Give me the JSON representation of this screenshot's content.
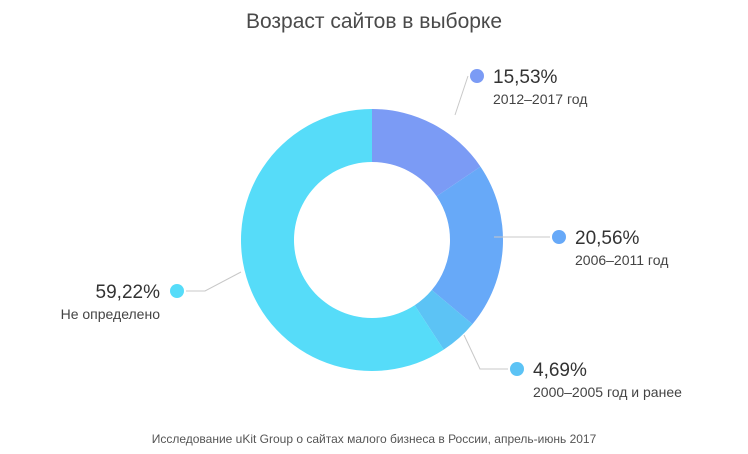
{
  "chart_data": {
    "type": "pie",
    "title": "Возраст сайтов в выборке",
    "donut": true,
    "slices": [
      {
        "value": 15.53,
        "label": "15,53%",
        "name": "2012–2017 год",
        "color": "#7b9bf5"
      },
      {
        "value": 20.56,
        "label": "20,56%",
        "name": "2006–2011 год",
        "color": "#67a9f8"
      },
      {
        "value": 4.69,
        "label": "4,69%",
        "name": "2000–2005 год и ранее",
        "color": "#5cc3f5"
      },
      {
        "value": 59.22,
        "label": "59,22%",
        "name": "Не определено",
        "color": "#56dcf9"
      }
    ],
    "source": "Исследование uKit Group о сайтах малого бизнеса в России, апрель-июнь 2017"
  }
}
